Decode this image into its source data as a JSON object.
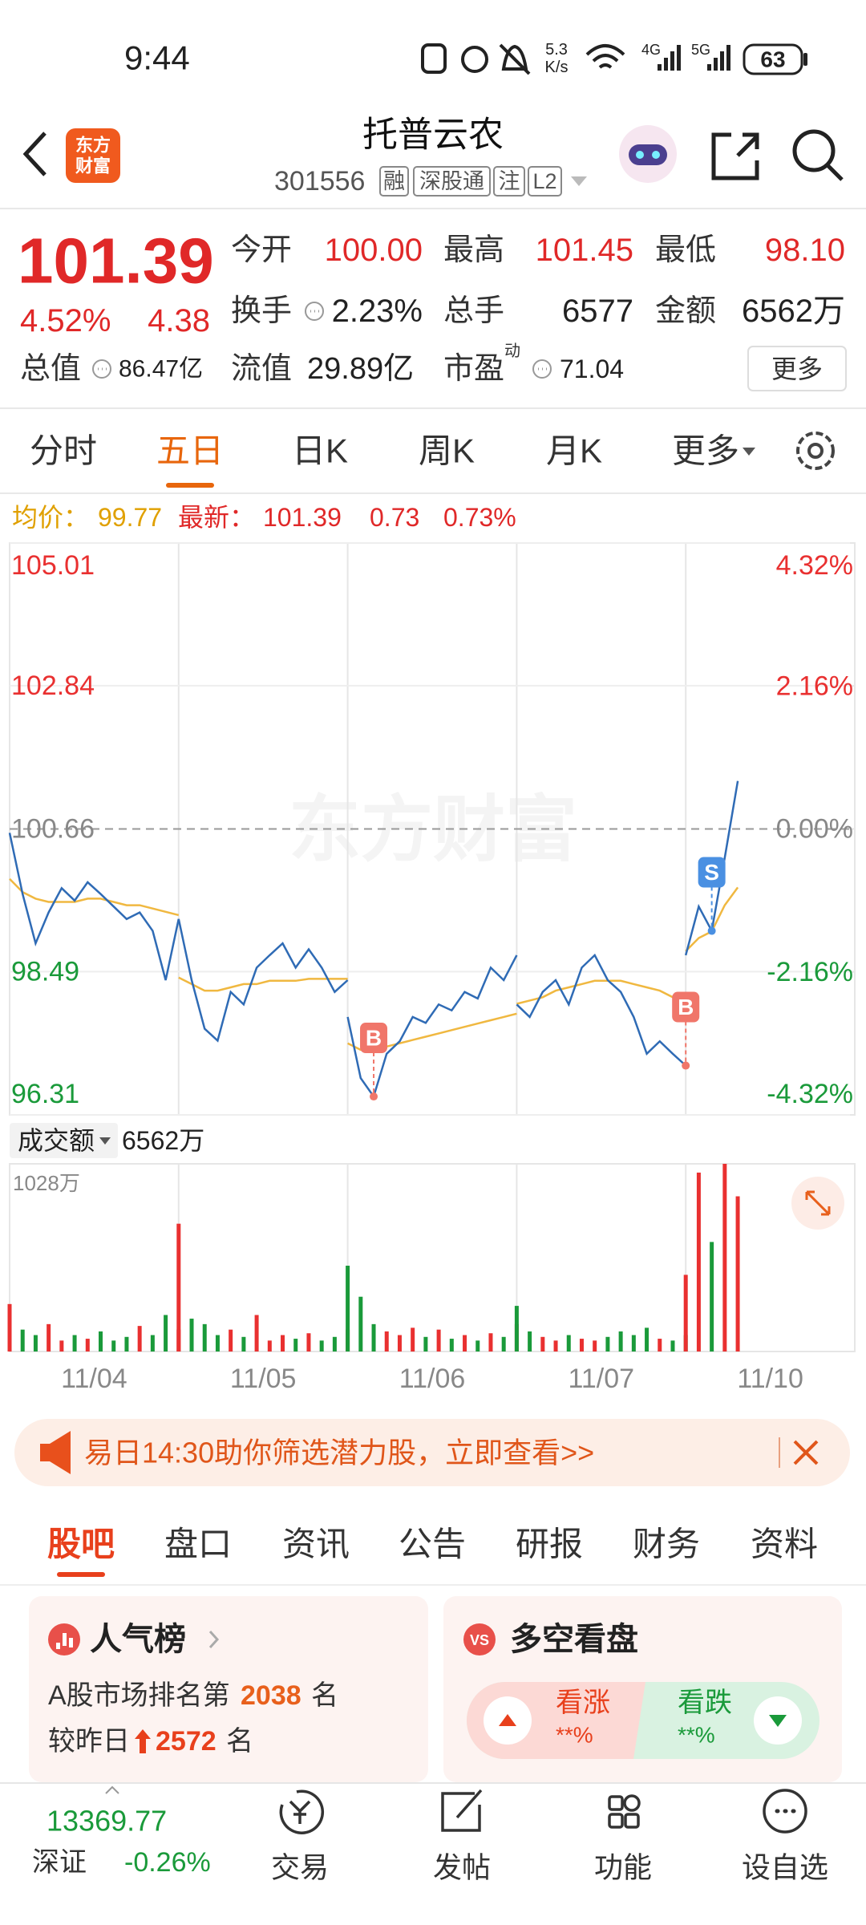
{
  "status_bar": {
    "time": "9:44",
    "speed": "5.3",
    "speed_unit": "K/s",
    "net_1": "4G",
    "net_2": "5G",
    "battery": "63"
  },
  "header": {
    "logo_top": "东方",
    "logo_bottom": "财富",
    "title": "托普云农",
    "code": "301556",
    "badges": [
      "融",
      "深股通",
      "注",
      "L2"
    ]
  },
  "quote": {
    "price": "101.39",
    "change_pct": "4.52%",
    "change": "4.38",
    "color": "#e02828",
    "fields": [
      {
        "label": "今开",
        "value": "100.00",
        "color": "#e02828"
      },
      {
        "label": "最高",
        "value": "101.45",
        "color": "#e02828"
      },
      {
        "label": "最低",
        "value": "98.10",
        "color": "#e02828"
      },
      {
        "label": "换手",
        "value": "2.23%",
        "color": "#222222"
      },
      {
        "label": "总手",
        "value": "6577",
        "color": "#222222"
      },
      {
        "label": "金额",
        "value": "6562万",
        "color": "#222222"
      },
      {
        "label": "总值",
        "value": "86.47亿",
        "color": "#222222"
      },
      {
        "label": "流值",
        "value": "29.89亿",
        "color": "#222222"
      },
      {
        "label": "市盈",
        "sup": "动",
        "value": "71.04",
        "color": "#222222"
      }
    ],
    "more": "更多"
  },
  "period_tabs": {
    "items": [
      "分时",
      "五日",
      "日K",
      "周K",
      "月K",
      "更多"
    ],
    "active": 1
  },
  "info_row": {
    "avg_label": "均价：",
    "avg": "99.77",
    "last_label": "最新：",
    "last": "101.39",
    "change": "0.73",
    "change_pct": "0.73%"
  },
  "chart": {
    "type": "line",
    "ylim": [
      96.31,
      105.01
    ],
    "yticks": [
      105.01,
      102.84,
      100.66,
      98.49,
      96.31
    ],
    "y2lim": [
      -4.32,
      4.32
    ],
    "pct_ticks": [
      {
        "value": 4.32,
        "label": "4.32%"
      },
      {
        "value": 2.16,
        "label": "2.16%"
      },
      {
        "value": 0,
        "label": "0.00%"
      },
      {
        "value": -2.16,
        "label": "-2.16%"
      },
      {
        "value": -4.32,
        "label": "-4.32%"
      }
    ],
    "line_color": "#2f6bb5",
    "avg_color": "#f0b840",
    "up_color": "#e93030",
    "down_color": "#1a9a3a",
    "watermark": "东方财富",
    "markers": [
      "B",
      "B",
      "S"
    ],
    "volume_ylim": [
      0,
      1028
    ],
    "volume_yticks": [
      {
        "value": 1028,
        "label": "1028万"
      }
    ],
    "days": [
      {
        "date": "11/04",
        "price": [
          100.6,
          99.67,
          98.92,
          99.39,
          99.76,
          99.57,
          99.85,
          99.67,
          99.48,
          99.29,
          99.39,
          99.11,
          98.36,
          99.29
        ],
        "avg": [
          99.9,
          99.7,
          99.6,
          99.55,
          99.55,
          99.55,
          99.6,
          99.6,
          99.55,
          99.5,
          99.5,
          99.45,
          99.4,
          99.35
        ],
        "volume": [
          260,
          120,
          90,
          150,
          60,
          90,
          70,
          110,
          60,
          80,
          140,
          90,
          200,
          120
        ]
      },
      {
        "date": "11/05",
        "price": [
          99.29,
          98.36,
          97.62,
          97.44,
          98.18,
          97.99,
          98.55,
          98.74,
          98.92,
          98.55,
          98.83,
          98.55,
          98.18,
          98.36
        ],
        "avg": [
          98.4,
          98.3,
          98.2,
          98.2,
          98.25,
          98.3,
          98.3,
          98.35,
          98.35,
          98.35,
          98.38,
          98.38,
          98.38,
          98.38
        ],
        "volume": [
          700,
          180,
          150,
          90,
          120,
          80,
          200,
          60,
          90,
          70,
          100,
          60,
          80,
          120
        ]
      },
      {
        "date": "11/06",
        "price": [
          97.8,
          96.87,
          96.59,
          97.24,
          97.43,
          97.8,
          97.71,
          97.99,
          97.9,
          98.18,
          98.08,
          98.55,
          98.36,
          98.74
        ],
        "avg": [
          97.4,
          97.3,
          97.3,
          97.35,
          97.4,
          97.45,
          97.5,
          97.55,
          97.6,
          97.65,
          97.7,
          97.75,
          97.8,
          97.85
        ],
        "volume": [
          470,
          300,
          150,
          110,
          90,
          130,
          80,
          120,
          70,
          90,
          60,
          100,
          80,
          150
        ]
      },
      {
        "date": "11/07",
        "price": [
          97.99,
          97.8,
          98.18,
          98.36,
          97.99,
          98.55,
          98.74,
          98.36,
          98.18,
          97.8,
          97.24,
          97.43,
          97.24,
          97.06
        ],
        "avg": [
          98.0,
          98.05,
          98.1,
          98.2,
          98.25,
          98.3,
          98.35,
          98.35,
          98.35,
          98.3,
          98.25,
          98.2,
          98.1,
          98.05
        ],
        "volume": [
          250,
          110,
          80,
          60,
          90,
          70,
          60,
          80,
          110,
          90,
          130,
          70,
          60,
          90
        ]
      },
      {
        "date": "11/10",
        "price": [
          98.74,
          99.48,
          99.11,
          100.22,
          101.39
        ],
        "avg": [
          98.8,
          99.0,
          99.1,
          99.5,
          99.77
        ],
        "volume": [
          420,
          980,
          600,
          1028,
          850
        ]
      }
    ]
  },
  "volume_header": {
    "label": "成交额",
    "value": "6562万"
  },
  "banner": {
    "text": "易日14:30助你筛选潜力股，立即查看>>"
  },
  "section_tabs": {
    "items": [
      "股吧",
      "盘口",
      "资讯",
      "公告",
      "研报",
      "财务",
      "资料"
    ],
    "active": 0
  },
  "cards": {
    "rank": {
      "title": "人气榜",
      "line1_prefix": "A股市场排名第",
      "rank": "2038",
      "line1_suffix": "名",
      "line2_prefix": "较昨日",
      "delta": "2572",
      "line2_suffix": "名"
    },
    "sentiment": {
      "badge": "VS",
      "title": "多空看盘",
      "bull": "看涨",
      "bull_pct": "**%",
      "bear": "看跌",
      "bear_pct": "**%"
    }
  },
  "bottom_nav": {
    "index_value": "13369.77",
    "index_name": "深证",
    "index_change": "-0.26%",
    "items": [
      "交易",
      "发帖",
      "功能",
      "设自选"
    ]
  }
}
